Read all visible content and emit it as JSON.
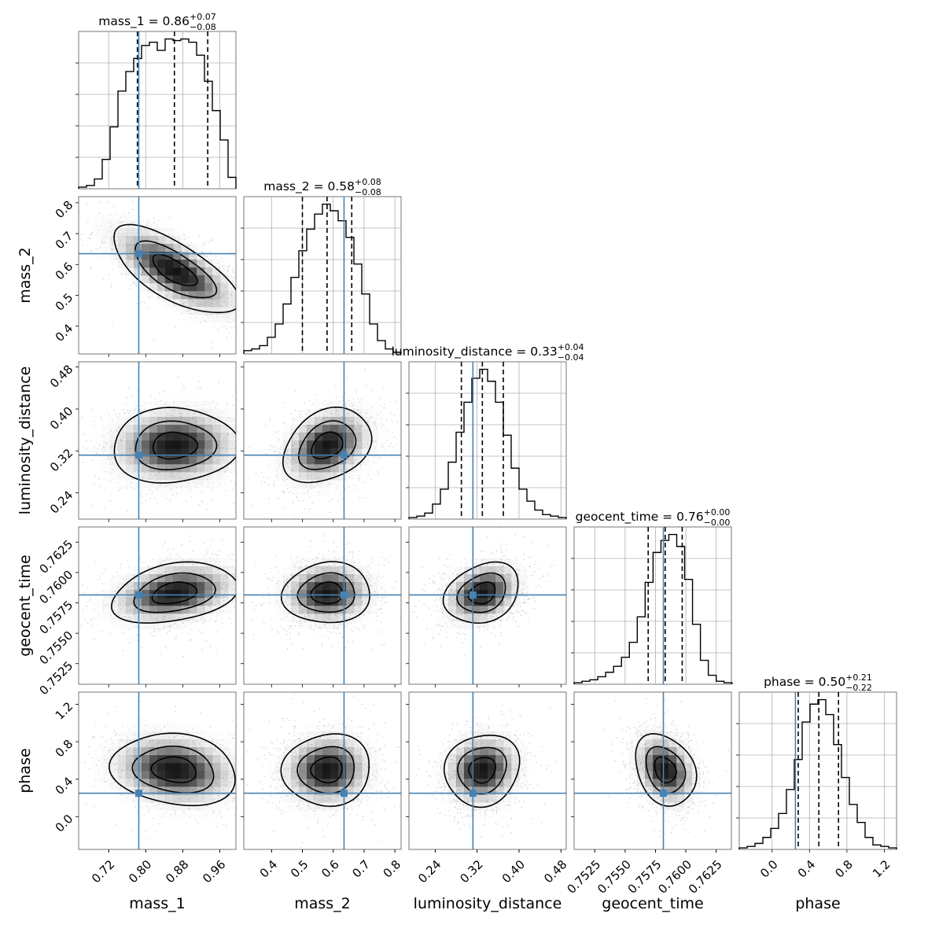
{
  "chart_data": {
    "type": "corner",
    "parameters": [
      "mass_1",
      "mass_2",
      "luminosity_distance",
      "geocent_time",
      "phase"
    ],
    "truths": {
      "mass_1": 0.785,
      "mass_2": 0.635,
      "luminosity_distance": 0.312,
      "geocent_time": 0.75815,
      "phase": 0.25
    },
    "titles": [
      {
        "param": "mass_1",
        "label": "mass_1 = 0.86",
        "plus": "+0.07",
        "minus": "−0.08"
      },
      {
        "param": "mass_2",
        "label": "mass_2 = 0.58",
        "plus": "+0.08",
        "minus": "−0.08"
      },
      {
        "param": "luminosity_distance",
        "label": "luminosity_distance = 0.33",
        "plus": "+0.04",
        "minus": "−0.04"
      },
      {
        "param": "geocent_time",
        "label": "geocent_time = 0.76",
        "plus": "+0.00",
        "minus": "−0.00"
      },
      {
        "param": "phase",
        "label": "phase = 0.50",
        "plus": "+0.21",
        "minus": "−0.22"
      }
    ],
    "axes": {
      "mass_1": {
        "label": "mass_1",
        "range": [
          0.655,
          0.995
        ],
        "ticks": [
          0.72,
          0.8,
          0.88,
          0.96
        ],
        "tick_labels": [
          "0.72",
          "0.80",
          "0.88",
          "0.96"
        ]
      },
      "mass_2": {
        "label": "mass_2",
        "range": [
          0.31,
          0.82
        ],
        "ticks": [
          0.4,
          0.5,
          0.6,
          0.7,
          0.8
        ],
        "tick_labels": [
          "0.4",
          "0.5",
          "0.6",
          "0.7",
          "0.8"
        ]
      },
      "luminosity_distance": {
        "label": "luminosity_distance",
        "range": [
          0.19,
          0.49
        ],
        "ticks": [
          0.24,
          0.32,
          0.4,
          0.48
        ],
        "tick_labels": [
          "0.24",
          "0.32",
          "0.40",
          "0.48"
        ]
      },
      "geocent_time": {
        "label": "geocent_time",
        "range": [
          0.7508,
          0.76375
        ],
        "ticks": [
          0.7525,
          0.755,
          0.7575,
          0.76,
          0.7625
        ],
        "tick_labels": [
          "0.7525",
          "0.7550",
          "0.7575",
          "0.7600",
          "0.7625"
        ]
      },
      "phase": {
        "label": "phase",
        "range": [
          -0.35,
          1.33
        ],
        "ticks": [
          0.0,
          0.4,
          0.8,
          1.2
        ],
        "tick_labels": [
          "0.0",
          "0.4",
          "0.8",
          "1.2"
        ]
      }
    },
    "quantiles": {
      "mass_1": [
        0.782,
        0.862,
        0.934
      ],
      "mass_2": [
        0.5,
        0.58,
        0.66
      ],
      "luminosity_distance": [
        0.29,
        0.33,
        0.37
      ],
      "geocent_time": [
        0.7569,
        0.7583,
        0.7597
      ],
      "phase": [
        0.28,
        0.5,
        0.71
      ]
    },
    "marginals": {
      "mass_1": {
        "edges": [
          0.655,
          0.672,
          0.689,
          0.706,
          0.723,
          0.74,
          0.757,
          0.774,
          0.791,
          0.808,
          0.825,
          0.842,
          0.859,
          0.876,
          0.893,
          0.91,
          0.927,
          0.944,
          0.961,
          0.978,
          0.995
        ],
        "counts": [
          1,
          2,
          6,
          18,
          38,
          60,
          72,
          80,
          88,
          90,
          85,
          92,
          91,
          92,
          90,
          82,
          66,
          48,
          30,
          7
        ]
      },
      "mass_2": {
        "edges": [
          0.31,
          0.3355,
          0.361,
          0.3865,
          0.412,
          0.4375,
          0.463,
          0.4885,
          0.514,
          0.5395,
          0.565,
          0.5905,
          0.616,
          0.6415,
          0.667,
          0.6925,
          0.718,
          0.7435,
          0.769,
          0.7945,
          0.82
        ],
        "counts": [
          2,
          3,
          5,
          10,
          18,
          30,
          46,
          62,
          75,
          84,
          90,
          86,
          80,
          70,
          54,
          36,
          18,
          8,
          3,
          1
        ]
      },
      "luminosity_distance": {
        "edges": [
          0.19,
          0.205,
          0.22,
          0.235,
          0.25,
          0.265,
          0.28,
          0.295,
          0.31,
          0.325,
          0.34,
          0.355,
          0.37,
          0.385,
          0.4,
          0.415,
          0.43,
          0.445,
          0.46,
          0.475,
          0.49
        ],
        "counts": [
          1,
          2,
          4,
          10,
          20,
          38,
          58,
          78,
          94,
          100,
          92,
          78,
          56,
          34,
          20,
          12,
          6,
          3,
          2,
          1
        ]
      },
      "geocent_time": {
        "edges": [
          0.7508,
          0.75145,
          0.7521,
          0.75275,
          0.7534,
          0.75405,
          0.7547,
          0.75535,
          0.756,
          0.75665,
          0.7573,
          0.75795,
          0.7586,
          0.75925,
          0.7599,
          0.76055,
          0.7612,
          0.76185,
          0.7625,
          0.76315,
          0.7638
        ],
        "counts": [
          1,
          2,
          3,
          5,
          8,
          12,
          18,
          28,
          45,
          68,
          88,
          96,
          100,
          92,
          70,
          40,
          16,
          6,
          2,
          1
        ]
      },
      "phase": {
        "edges": [
          -0.35,
          -0.266,
          -0.182,
          -0.098,
          -0.014,
          0.07,
          0.154,
          0.238,
          0.322,
          0.406,
          0.49,
          0.574,
          0.658,
          0.742,
          0.826,
          0.91,
          0.994,
          1.078,
          1.162,
          1.246,
          1.33
        ],
        "counts": [
          1,
          2,
          4,
          8,
          14,
          24,
          40,
          60,
          85,
          97,
          100,
          90,
          70,
          48,
          30,
          18,
          8,
          3,
          2,
          1
        ]
      }
    },
    "correlations": {
      "mass_2|mass_1": -0.7,
      "luminosity_distance|mass_1": 0.05,
      "luminosity_distance|mass_2": 0.3,
      "geocent_time|mass_1": 0.3,
      "geocent_time|mass_2": 0.05,
      "geocent_time|luminosity_distance": 0.25,
      "phase|mass_1": -0.15,
      "phase|mass_2": 0.05,
      "phase|luminosity_distance": 0.1,
      "phase|geocent_time": -0.25
    },
    "truth_color": "#4682b4",
    "contour_color": "#000000",
    "grid": true
  }
}
